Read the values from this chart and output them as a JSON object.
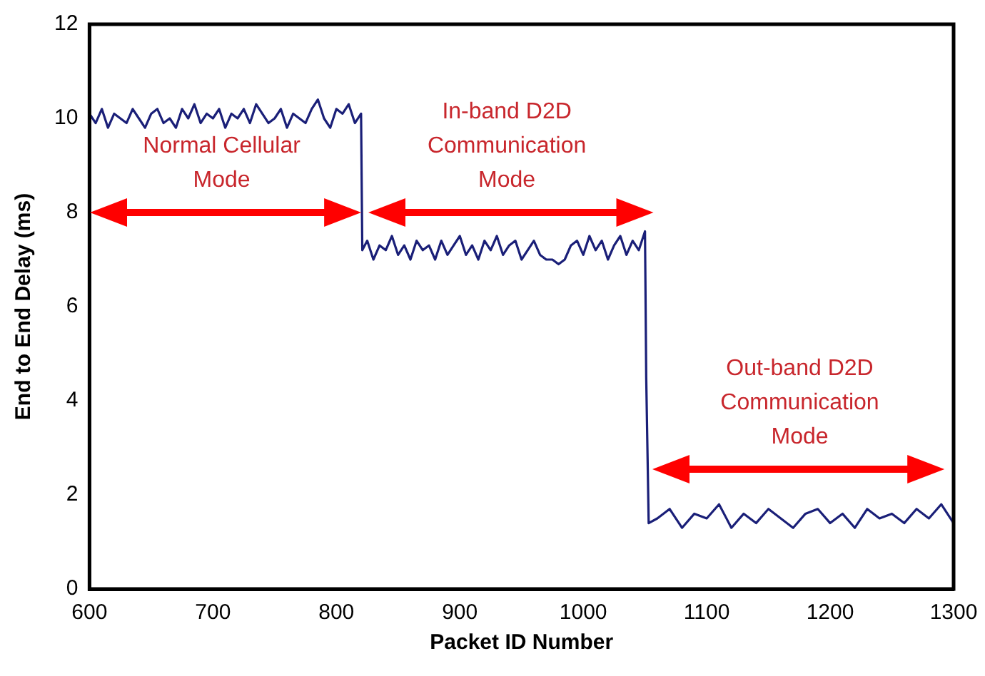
{
  "chart_data": {
    "type": "line",
    "xlabel": "Packet ID Number",
    "ylabel": "End to End Delay (ms)",
    "xlim": [
      600,
      1300
    ],
    "xticks": [
      600,
      700,
      800,
      900,
      1000,
      1100,
      1200,
      1300
    ],
    "ylim": [
      0,
      12
    ],
    "yticks": [
      0,
      2,
      4,
      6,
      8,
      10,
      12
    ],
    "grid": false,
    "legend": false,
    "marker": "none",
    "line_style": "solid",
    "series": [
      {
        "color": "#1a1f78",
        "x": [
          600,
          605,
          610,
          615,
          620,
          625,
          630,
          635,
          640,
          645,
          650,
          655,
          660,
          665,
          670,
          675,
          680,
          685,
          690,
          695,
          700,
          705,
          710,
          715,
          720,
          725,
          730,
          735,
          740,
          745,
          750,
          755,
          760,
          765,
          770,
          775,
          780,
          785,
          790,
          795,
          800,
          805,
          810,
          815,
          820,
          821,
          825,
          830,
          835,
          840,
          845,
          850,
          855,
          860,
          865,
          870,
          875,
          880,
          885,
          890,
          895,
          900,
          905,
          910,
          915,
          920,
          925,
          930,
          935,
          940,
          945,
          950,
          955,
          960,
          965,
          970,
          975,
          980,
          985,
          990,
          995,
          1000,
          1005,
          1010,
          1015,
          1020,
          1025,
          1030,
          1035,
          1040,
          1045,
          1050,
          1051,
          1053,
          1060,
          1070,
          1080,
          1090,
          1100,
          1110,
          1120,
          1130,
          1140,
          1150,
          1160,
          1170,
          1180,
          1190,
          1200,
          1210,
          1220,
          1230,
          1240,
          1250,
          1260,
          1270,
          1280,
          1290,
          1300
        ],
        "values": [
          10.1,
          9.9,
          10.2,
          9.8,
          10.1,
          10.0,
          9.9,
          10.2,
          10.0,
          9.8,
          10.1,
          10.2,
          9.9,
          10.0,
          9.8,
          10.2,
          10.0,
          10.3,
          9.9,
          10.1,
          10.0,
          10.2,
          9.8,
          10.1,
          10.0,
          10.2,
          9.9,
          10.3,
          10.1,
          9.9,
          10.0,
          10.2,
          9.8,
          10.1,
          10.0,
          9.9,
          10.2,
          10.4,
          10.0,
          9.8,
          10.2,
          10.1,
          10.3,
          9.9,
          10.1,
          7.2,
          7.4,
          7.0,
          7.3,
          7.2,
          7.5,
          7.1,
          7.3,
          7.0,
          7.4,
          7.2,
          7.3,
          7.0,
          7.4,
          7.1,
          7.3,
          7.5,
          7.1,
          7.3,
          7.0,
          7.4,
          7.2,
          7.5,
          7.1,
          7.3,
          7.4,
          7.0,
          7.2,
          7.4,
          7.1,
          7.0,
          7.0,
          6.9,
          7.0,
          7.3,
          7.4,
          7.1,
          7.5,
          7.2,
          7.4,
          7.0,
          7.3,
          7.5,
          7.1,
          7.4,
          7.2,
          7.6,
          4.5,
          1.4,
          1.5,
          1.7,
          1.3,
          1.6,
          1.5,
          1.8,
          1.3,
          1.6,
          1.4,
          1.7,
          1.5,
          1.3,
          1.6,
          1.7,
          1.4,
          1.6,
          1.3,
          1.7,
          1.5,
          1.6,
          1.4,
          1.7,
          1.5,
          1.8,
          1.4
        ]
      }
    ],
    "annotations": [
      "Normal Cellular Mode",
      "In-band D2D Communication Mode",
      "Out-band D2D Communication Mode"
    ]
  }
}
